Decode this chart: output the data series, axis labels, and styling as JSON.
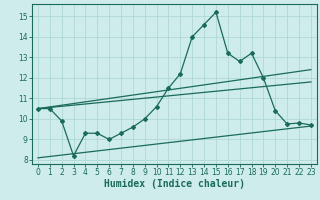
{
  "xlabel": "Humidex (Indice chaleur)",
  "bg_color": "#ceecea",
  "line_color": "#1a6b5a",
  "grid_color": "#afd8d4",
  "xlim": [
    -0.5,
    23.5
  ],
  "ylim": [
    7.8,
    15.6
  ],
  "yticks": [
    8,
    9,
    10,
    11,
    12,
    13,
    14,
    15
  ],
  "xticks": [
    0,
    1,
    2,
    3,
    4,
    5,
    6,
    7,
    8,
    9,
    10,
    11,
    12,
    13,
    14,
    15,
    16,
    17,
    18,
    19,
    20,
    21,
    22,
    23
  ],
  "main_line_x": [
    0,
    1,
    2,
    3,
    4,
    5,
    6,
    7,
    8,
    9,
    10,
    11,
    12,
    13,
    14,
    15,
    16,
    17,
    18,
    19,
    20,
    21,
    22,
    23
  ],
  "main_line_y": [
    10.5,
    10.5,
    9.9,
    8.2,
    9.3,
    9.3,
    9.0,
    9.3,
    9.6,
    10.0,
    10.6,
    11.5,
    12.2,
    14.0,
    14.6,
    15.2,
    13.2,
    12.8,
    13.2,
    12.0,
    10.4,
    9.75,
    9.8,
    9.7
  ],
  "upper_line_x": [
    0,
    23
  ],
  "upper_line_y": [
    10.5,
    12.4
  ],
  "mid_line_x": [
    0,
    23
  ],
  "mid_line_y": [
    10.5,
    11.8
  ],
  "lower_line_x": [
    0,
    23
  ],
  "lower_line_y": [
    8.1,
    9.65
  ],
  "tick_fontsize": 5.5,
  "xlabel_fontsize": 7.0,
  "marker_size": 2.0,
  "line_width": 0.9
}
